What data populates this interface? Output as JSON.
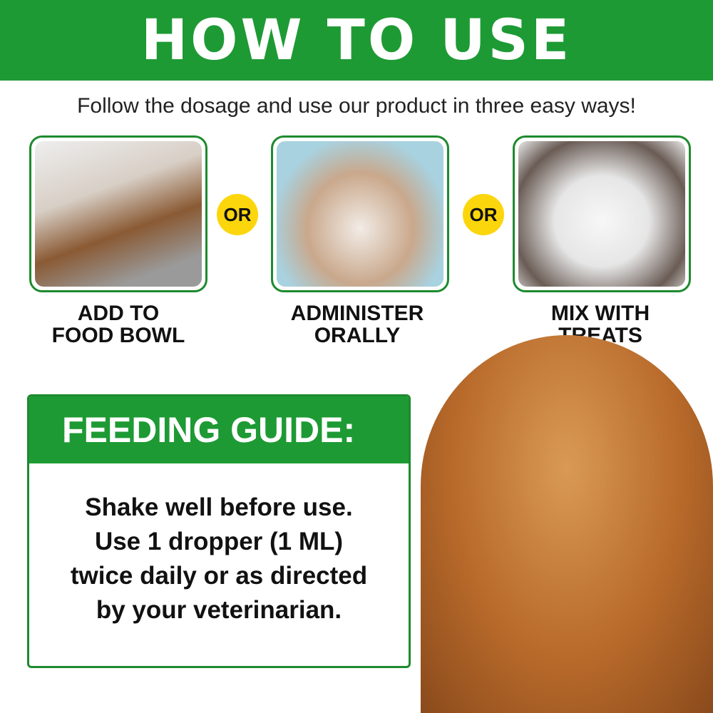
{
  "header": {
    "title": "HOW TO USE"
  },
  "subtitle": "Follow the dosage and use our product in three easy ways!",
  "methods": [
    {
      "label_line1": "ADD TO",
      "label_line2": "FOOD BOWL"
    },
    {
      "label_line1": "ADMINISTER",
      "label_line2": "ORALLY"
    },
    {
      "label_line1": "MIX WITH",
      "label_line2": "TREATS"
    }
  ],
  "separator": "OR",
  "feeding_guide": {
    "title": "FEEDING GUIDE:",
    "lines": [
      "Shake well before use.",
      "Use 1 dropper (1 ML)",
      "twice daily or as directed",
      "by your veterinarian."
    ]
  },
  "colors": {
    "brand_green": "#1e9a34",
    "or_yellow": "#fcd60c"
  }
}
